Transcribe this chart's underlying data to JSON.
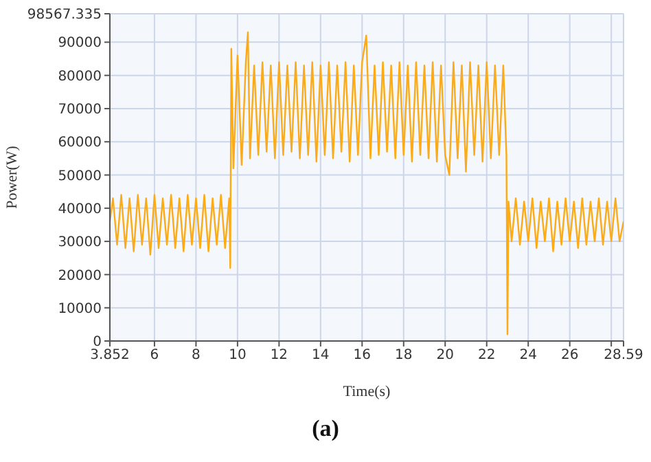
{
  "chart_data": {
    "type": "line",
    "xlabel": "Time(s)",
    "ylabel": "Power(W)",
    "annotations": [
      "(a)"
    ],
    "xlim": [
      3.852,
      28.59
    ],
    "xticks": [
      3.852,
      6,
      8,
      10,
      12,
      14,
      16,
      18,
      20,
      22,
      24,
      26,
      {
        "value": 28,
        "label": null
      },
      28.59
    ],
    "ylim": [
      0,
      98567.335
    ],
    "yticks": [
      0,
      10000,
      20000,
      30000,
      40000,
      50000,
      60000,
      70000,
      80000,
      90000,
      98567.335
    ],
    "grid": true,
    "line_style": "solid",
    "marker": "none",
    "series": [
      {
        "color": "#fbab18",
        "x": [
          3.852,
          4.0,
          4.2,
          4.4,
          4.6,
          4.8,
          5.0,
          5.2,
          5.4,
          5.6,
          5.8,
          6.0,
          6.2,
          6.4,
          6.6,
          6.8,
          7.0,
          7.2,
          7.4,
          7.6,
          7.8,
          8.0,
          8.2,
          8.4,
          8.6,
          8.8,
          9.0,
          9.2,
          9.4,
          9.6,
          9.65,
          9.7,
          9.8,
          10.0,
          10.2,
          10.4,
          10.5,
          10.6,
          10.8,
          11.0,
          11.2,
          11.4,
          11.6,
          11.8,
          12.0,
          12.2,
          12.4,
          12.6,
          12.8,
          13.0,
          13.2,
          13.4,
          13.6,
          13.8,
          14.0,
          14.2,
          14.4,
          14.6,
          14.8,
          15.0,
          15.2,
          15.4,
          15.6,
          15.8,
          16.0,
          16.2,
          16.4,
          16.6,
          16.8,
          17.0,
          17.2,
          17.4,
          17.6,
          17.8,
          18.0,
          18.2,
          18.4,
          18.6,
          18.8,
          19.0,
          19.2,
          19.4,
          19.6,
          19.8,
          20.0,
          20.2,
          20.4,
          20.6,
          20.8,
          21.0,
          21.2,
          21.4,
          21.6,
          21.8,
          22.0,
          22.2,
          22.4,
          22.6,
          22.8,
          22.95,
          23.0,
          23.05,
          23.2,
          23.4,
          23.6,
          23.8,
          24.0,
          24.2,
          24.4,
          24.6,
          24.8,
          25.0,
          25.2,
          25.4,
          25.6,
          25.8,
          26.0,
          26.2,
          26.4,
          26.6,
          26.8,
          27.0,
          27.2,
          27.4,
          27.6,
          27.8,
          28.0,
          28.2,
          28.4,
          28.59
        ],
        "values": [
          36000,
          43000,
          29000,
          44000,
          28000,
          43000,
          27000,
          44000,
          29000,
          43000,
          26000,
          44000,
          28000,
          43000,
          29000,
          44000,
          28000,
          43000,
          27000,
          44000,
          29000,
          43000,
          28000,
          44000,
          27000,
          43000,
          29000,
          44000,
          28000,
          43000,
          22000,
          88000,
          52000,
          86000,
          53000,
          84000,
          93000,
          55000,
          83000,
          56000,
          84000,
          57000,
          83000,
          55000,
          84000,
          56000,
          83000,
          57000,
          84000,
          55000,
          83000,
          56000,
          84000,
          54000,
          83000,
          56000,
          84000,
          55000,
          83000,
          57000,
          84000,
          54000,
          83000,
          56000,
          84000,
          92000,
          55000,
          83000,
          56000,
          84000,
          57000,
          83000,
          55000,
          84000,
          56000,
          83000,
          54000,
          84000,
          56000,
          83000,
          55000,
          84000,
          54000,
          83000,
          56000,
          50000,
          84000,
          55000,
          83000,
          51000,
          84000,
          56000,
          83000,
          54000,
          84000,
          55000,
          83000,
          56000,
          83000,
          56000,
          2000,
          42000,
          30000,
          43000,
          29000,
          42000,
          30000,
          43000,
          28000,
          42000,
          30000,
          43000,
          27000,
          42000,
          29000,
          43000,
          30000,
          42000,
          28000,
          43000,
          29000,
          42000,
          30000,
          43000,
          29000,
          42000,
          30000,
          43000,
          30000,
          36000
        ]
      }
    ]
  }
}
